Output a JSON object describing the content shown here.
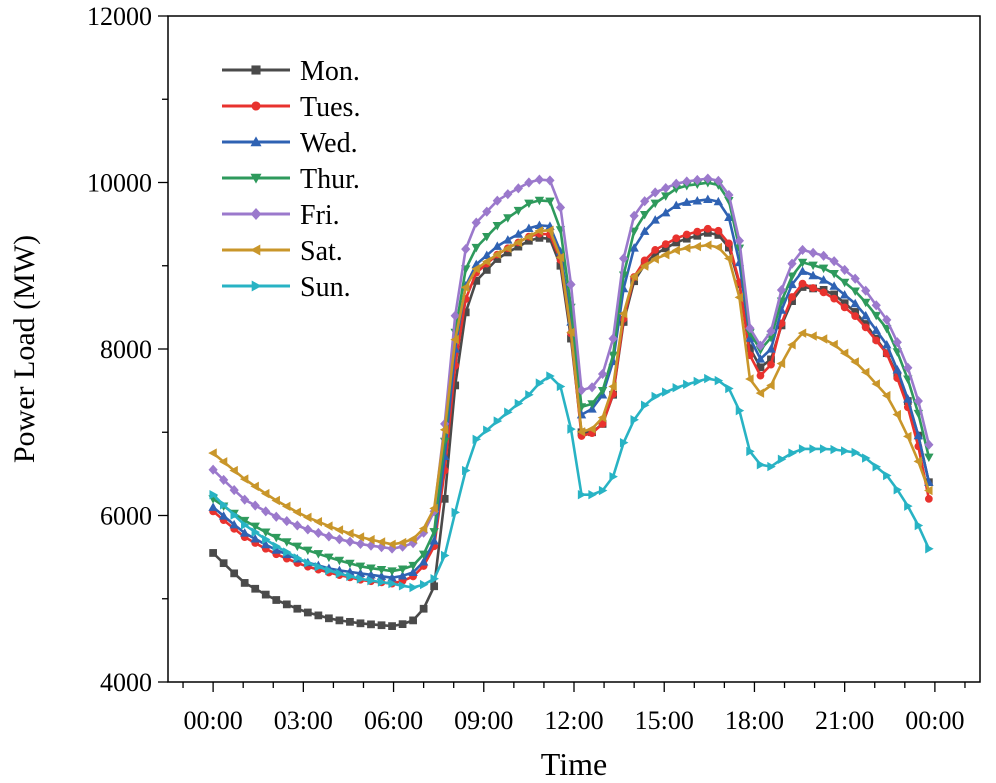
{
  "chart_data": {
    "type": "line",
    "title": "",
    "xlabel": "Time",
    "ylabel": "Power Load (MW)",
    "xlim": [
      -1.5,
      25.5
    ],
    "ylim": [
      4000,
      12000
    ],
    "grid": false,
    "legend_position": "top-left",
    "x_ticks": [
      0,
      3,
      6,
      9,
      12,
      15,
      18,
      21,
      24
    ],
    "x_tick_labels": [
      "00:00",
      "03:00",
      "06:00",
      "09:00",
      "12:00",
      "15:00",
      "18:00",
      "21:00",
      "00:00"
    ],
    "y_ticks": [
      4000,
      6000,
      8000,
      10000,
      12000
    ],
    "y_tick_labels": [
      "4000",
      "6000",
      "8000",
      "10000",
      "12000"
    ],
    "x_knots": [
      0,
      1,
      2,
      3,
      4,
      5,
      6,
      6.6,
      7.3,
      7.8,
      8.2,
      8.7,
      9.5,
      10.5,
      11,
      11.4,
      11.8,
      12.2,
      12.7,
      13.2,
      13.8,
      14.5,
      15.5,
      16.5,
      17,
      17.4,
      17.9,
      18.4,
      19,
      19.5,
      20.5,
      21.5,
      22.5,
      23.3,
      23.8
    ],
    "series": [
      {
        "name": "Mon.",
        "color": "#4a4a4a",
        "marker": "square",
        "knots": [
          5550,
          5200,
          5000,
          4850,
          4750,
          4700,
          4670,
          4720,
          5000,
          6500,
          8200,
          8800,
          9100,
          9300,
          9350,
          9300,
          8500,
          7000,
          7000,
          7200,
          8700,
          9100,
          9300,
          9400,
          9350,
          9000,
          7900,
          7700,
          8400,
          8750,
          8700,
          8400,
          7900,
          7200,
          6400
        ]
      },
      {
        "name": "Tues.",
        "color": "#e8322e",
        "marker": "circle",
        "knots": [
          6050,
          5750,
          5550,
          5400,
          5300,
          5220,
          5180,
          5250,
          5500,
          6800,
          8400,
          8900,
          9150,
          9350,
          9400,
          9350,
          8600,
          6950,
          7000,
          7200,
          8750,
          9150,
          9350,
          9450,
          9400,
          9050,
          7800,
          7600,
          8450,
          8800,
          8650,
          8350,
          7900,
          7100,
          6200
        ]
      },
      {
        "name": "Wed.",
        "color": "#2f62b3",
        "marker": "triangle-up",
        "knots": [
          6100,
          5800,
          5600,
          5450,
          5350,
          5300,
          5250,
          5300,
          5550,
          7000,
          8600,
          9000,
          9250,
          9450,
          9500,
          9450,
          8700,
          7200,
          7300,
          7600,
          9100,
          9500,
          9750,
          9800,
          9750,
          9300,
          8000,
          7800,
          8600,
          8950,
          8800,
          8500,
          8000,
          7200,
          6400
        ]
      },
      {
        "name": "Thur.",
        "color": "#2e9a5c",
        "marker": "triangle-down",
        "knots": [
          6200,
          5950,
          5750,
          5600,
          5480,
          5380,
          5330,
          5380,
          5650,
          7200,
          8800,
          9200,
          9500,
          9750,
          9800,
          9750,
          8900,
          7300,
          7350,
          7650,
          9300,
          9700,
          9950,
          10000,
          9950,
          9500,
          8050,
          7950,
          8700,
          9050,
          8950,
          8650,
          8200,
          7450,
          6700
        ]
      },
      {
        "name": "Fri.",
        "color": "#9b79cc",
        "marker": "diamond",
        "knots": [
          6550,
          6200,
          6000,
          5850,
          5730,
          5650,
          5600,
          5650,
          5900,
          7400,
          9000,
          9500,
          9800,
          10000,
          10050,
          10000,
          9200,
          7500,
          7550,
          7850,
          9500,
          9850,
          10000,
          10050,
          10000,
          9600,
          8100,
          8000,
          8850,
          9200,
          9100,
          8800,
          8300,
          7600,
          6850
        ]
      },
      {
        "name": "Sat.",
        "color": "#c9962a",
        "marker": "triangle-left",
        "knots": [
          6750,
          6450,
          6200,
          6000,
          5850,
          5730,
          5650,
          5700,
          5950,
          7300,
          8600,
          8950,
          9150,
          9350,
          9450,
          9400,
          8600,
          7000,
          7050,
          7300,
          8800,
          9050,
          9200,
          9250,
          9200,
          8900,
          7500,
          7450,
          7900,
          8200,
          8100,
          7800,
          7400,
          6800,
          6300
        ]
      },
      {
        "name": "Sun.",
        "color": "#28b3c4",
        "marker": "triangle-right",
        "knots": [
          6250,
          5900,
          5650,
          5450,
          5320,
          5230,
          5180,
          5130,
          5200,
          5600,
          6300,
          6900,
          7150,
          7450,
          7650,
          7700,
          7300,
          6250,
          6250,
          6350,
          7050,
          7400,
          7550,
          7650,
          7600,
          7400,
          6700,
          6550,
          6700,
          6800,
          6800,
          6750,
          6450,
          6000,
          5600
        ]
      }
    ]
  }
}
